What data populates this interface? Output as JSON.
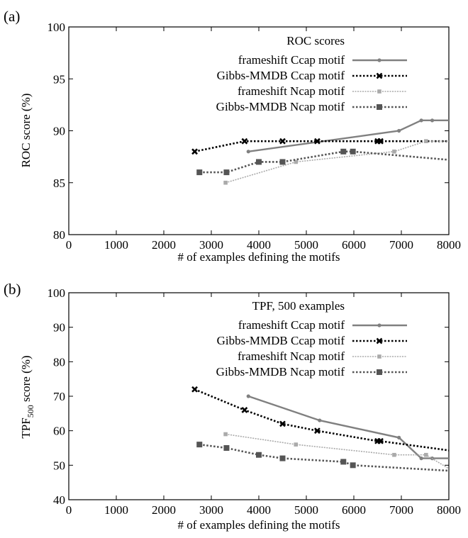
{
  "chart_data": [
    {
      "type": "line",
      "panel_label": "(a)",
      "ylabel": "ROC  score (%)",
      "xlabel": "# of examples defining the motifs",
      "xlim": [
        0,
        8000
      ],
      "ylim": [
        80,
        100
      ],
      "xticks": [
        0,
        1000,
        2000,
        3000,
        4000,
        5000,
        6000,
        7000,
        8000
      ],
      "yticks": [
        80,
        85,
        90,
        95,
        100
      ],
      "legend_title": "ROC scores",
      "legend_position": "top-right",
      "series": [
        {
          "name": "frameshift Ccap motif",
          "color": "#808080",
          "style": "solid",
          "marker": "dot",
          "points": [
            [
              3780,
              88
            ],
            [
              6950,
              90
            ],
            [
              7420,
              91
            ],
            [
              7650,
              91
            ],
            [
              8000,
              91
            ]
          ]
        },
        {
          "name": "Gibbs-MMDB Ccap motif",
          "color": "#000000",
          "style": "dotted-bold",
          "marker": "x",
          "points": [
            [
              2650,
              88
            ],
            [
              3700,
              89
            ],
            [
              4500,
              89
            ],
            [
              5230,
              89
            ],
            [
              6500,
              89
            ],
            [
              6560,
              89
            ],
            [
              8000,
              89
            ]
          ]
        },
        {
          "name": "frameshift Ncap motif",
          "color": "#aaaaaa",
          "style": "dotted",
          "marker": "square-small",
          "points": [
            [
              3300,
              85
            ],
            [
              4780,
              87
            ],
            [
              6850,
              88
            ],
            [
              7520,
              89
            ],
            [
              8000,
              89
            ]
          ]
        },
        {
          "name": "Gibbs-MMDB Ncap motif",
          "color": "#555555",
          "style": "dotted-bold",
          "marker": "square",
          "points": [
            [
              2750,
              86
            ],
            [
              3320,
              86
            ],
            [
              4000,
              87
            ],
            [
              4500,
              87
            ],
            [
              5780,
              88
            ],
            [
              5980,
              88
            ],
            [
              8000,
              87.2
            ]
          ]
        }
      ]
    },
    {
      "type": "line",
      "panel_label": "(b)",
      "ylabel_main": "TPF",
      "ylabel_sub": "500",
      "ylabel_rest": " score (%)",
      "xlabel": "# of examples defining the motifs",
      "xlim": [
        0,
        8000
      ],
      "ylim": [
        40,
        100
      ],
      "xticks": [
        0,
        1000,
        2000,
        3000,
        4000,
        5000,
        6000,
        7000,
        8000
      ],
      "yticks": [
        40,
        50,
        60,
        70,
        80,
        90,
        100
      ],
      "legend_title": "TPF, 500 examples",
      "legend_position": "top-right",
      "series": [
        {
          "name": "frameshift Ccap motif",
          "color": "#808080",
          "style": "solid",
          "marker": "dot",
          "points": [
            [
              3780,
              70
            ],
            [
              5280,
              63
            ],
            [
              6950,
              58
            ],
            [
              7420,
              52
            ],
            [
              7650,
              52
            ],
            [
              8000,
              52
            ]
          ]
        },
        {
          "name": "Gibbs-MMDB Ccap motif",
          "color": "#000000",
          "style": "dotted-bold",
          "marker": "x",
          "points": [
            [
              2650,
              72
            ],
            [
              3700,
              66
            ],
            [
              4500,
              62
            ],
            [
              5230,
              60
            ],
            [
              6500,
              57
            ],
            [
              6560,
              57
            ],
            [
              8000,
              54.3
            ]
          ]
        },
        {
          "name": "frameshift Ncap motif",
          "color": "#aaaaaa",
          "style": "dotted",
          "marker": "square-small",
          "points": [
            [
              3300,
              59
            ],
            [
              4780,
              56
            ],
            [
              6850,
              53
            ],
            [
              7520,
              53
            ],
            [
              8000,
              49
            ]
          ]
        },
        {
          "name": "Gibbs-MMDB Ncap motif",
          "color": "#555555",
          "style": "dotted-bold",
          "marker": "square",
          "points": [
            [
              2750,
              56
            ],
            [
              3320,
              55
            ],
            [
              4000,
              53
            ],
            [
              4500,
              52
            ],
            [
              5780,
              51
            ],
            [
              5980,
              50
            ],
            [
              8000,
              48.4
            ]
          ]
        }
      ]
    }
  ]
}
